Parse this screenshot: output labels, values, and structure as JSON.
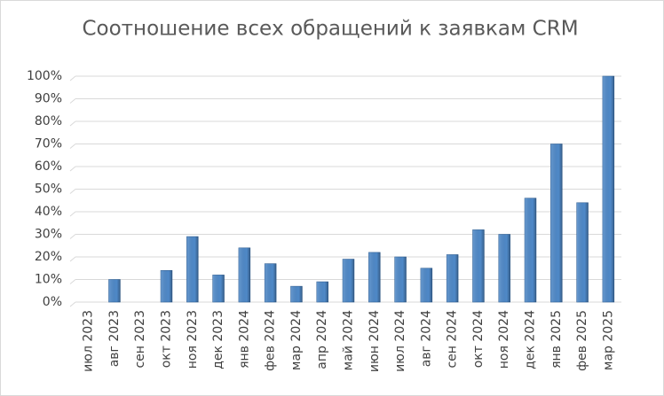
{
  "chart_data": {
    "type": "bar",
    "title": "Соотношение всех обращений к заявкам CRM",
    "categories": [
      "июл 2023",
      "авг 2023",
      "сен 2023",
      "окт 2023",
      "ноя 2023",
      "дек 2023",
      "янв 2024",
      "фев 2024",
      "мар 2024",
      "апр 2024",
      "май 2024",
      "июн 2024",
      "июл 2024",
      "авг 2024",
      "сен 2024",
      "окт 2024",
      "ноя 2024",
      "дек 2024",
      "янв 2025",
      "фев 2025",
      "мар 2025"
    ],
    "values": [
      0,
      10,
      0,
      14,
      29,
      12,
      24,
      17,
      7,
      9,
      19,
      22,
      20,
      15,
      21,
      32,
      30,
      46,
      70,
      44,
      100
    ],
    "color": "#4f89c8",
    "ylim": [
      0,
      100
    ],
    "yticks": [
      {
        "value": 0,
        "label": "0%"
      },
      {
        "value": 10,
        "label": "10%"
      },
      {
        "value": 20,
        "label": "20%"
      },
      {
        "value": 30,
        "label": "30%"
      },
      {
        "value": 40,
        "label": "40%"
      },
      {
        "value": 50,
        "label": "50%"
      },
      {
        "value": 60,
        "label": "60%"
      },
      {
        "value": 70,
        "label": "70%"
      },
      {
        "value": 80,
        "label": "80%"
      },
      {
        "value": 90,
        "label": "90%"
      },
      {
        "value": 100,
        "label": "100%"
      }
    ],
    "grid": true
  }
}
